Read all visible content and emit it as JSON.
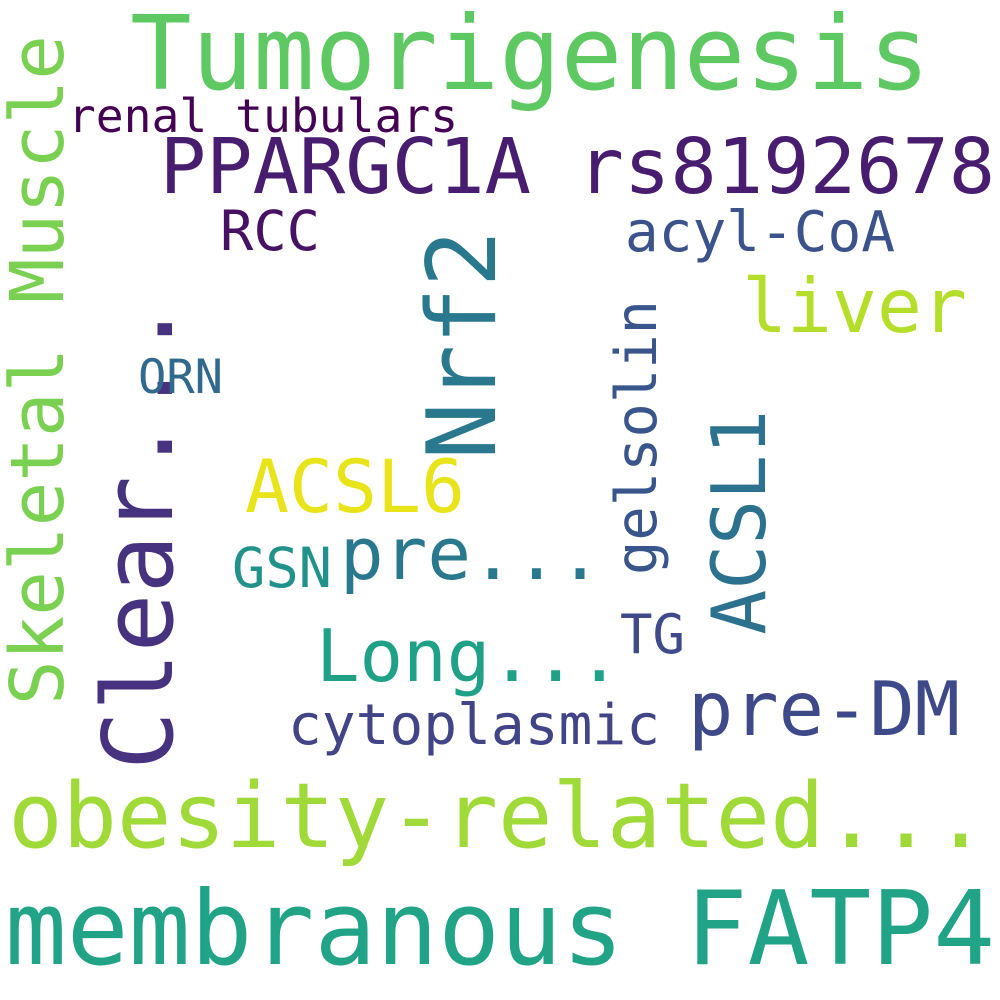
{
  "background": "#ffffff",
  "words": [
    {
      "text": "Tumorigenesis",
      "color": "#5ec962"
    },
    {
      "text": "renal tubulars",
      "color": "#440154"
    },
    {
      "text": "PPARGC1A rs8192678",
      "color": "#481c6e"
    },
    {
      "text": "RCC",
      "color": "#471164"
    },
    {
      "text": "acyl-CoA",
      "color": "#3b528b"
    },
    {
      "text": "liver",
      "color": "#b5de2b"
    },
    {
      "text": "Skeletal Muscle",
      "color": "#7ad151"
    },
    {
      "text": "Clear...",
      "color": "#46327e"
    },
    {
      "text": "Nrf2",
      "color": "#2a788e"
    },
    {
      "text": "ORN",
      "color": "#31688e"
    },
    {
      "text": "ACSL6",
      "color": "#e8e419"
    },
    {
      "text": "gelsolin",
      "color": "#39568c"
    },
    {
      "text": "ACSL1",
      "color": "#2c728e"
    },
    {
      "text": "GSN",
      "color": "#21918c"
    },
    {
      "text": "pre...",
      "color": "#2a788e"
    },
    {
      "text": "Long...",
      "color": "#1fa187"
    },
    {
      "text": "TG",
      "color": "#3e4a89"
    },
    {
      "text": "pre-DM",
      "color": "#3e4989"
    },
    {
      "text": "cytoplasmic",
      "color": "#414487"
    },
    {
      "text": "obesity-related...",
      "color": "#a0da39"
    },
    {
      "text": "membranous FATP4",
      "color": "#20a386"
    }
  ]
}
